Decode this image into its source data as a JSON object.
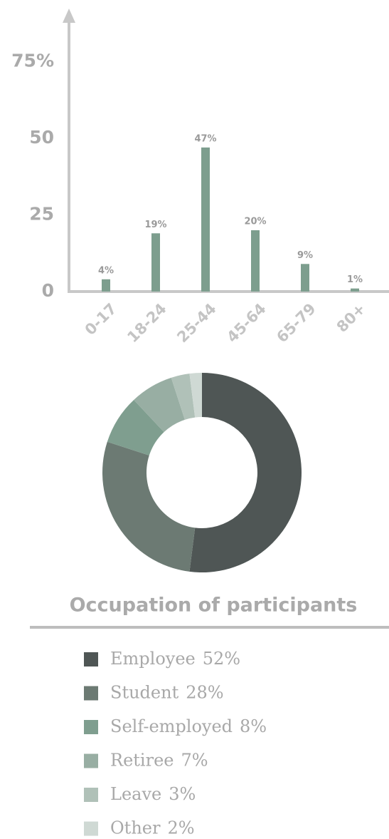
{
  "chart_data": [
    {
      "type": "bar",
      "categories": [
        "0-17",
        "18-24",
        "25-44",
        "45-64",
        "65-79",
        "80+"
      ],
      "values": [
        4,
        19,
        47,
        20,
        9,
        1
      ],
      "value_labels": [
        "4%",
        "19%",
        "47%",
        "20%",
        "9%",
        "1%"
      ],
      "color": "#7d9e8e",
      "ylim": [
        0,
        90
      ],
      "yticks": [
        0,
        25,
        50,
        {
          "value": 75,
          "label": "75%"
        }
      ],
      "grid": false
    },
    {
      "type": "donut",
      "title": "Occupation of participants",
      "categories": [
        "Employee",
        "Student",
        "Self-employed",
        "Retiree",
        "Leave",
        "Other"
      ],
      "values": [
        52,
        28,
        8,
        7,
        3,
        2
      ],
      "value_labels": [
        "52%",
        "28%",
        "8%",
        "7%",
        "3%",
        "2%"
      ],
      "colors": [
        "#4f5655",
        "#6c7a73",
        "#7f9e8f",
        "#98aea3",
        "#b0c1b8",
        "#cfd9d4"
      ]
    }
  ]
}
